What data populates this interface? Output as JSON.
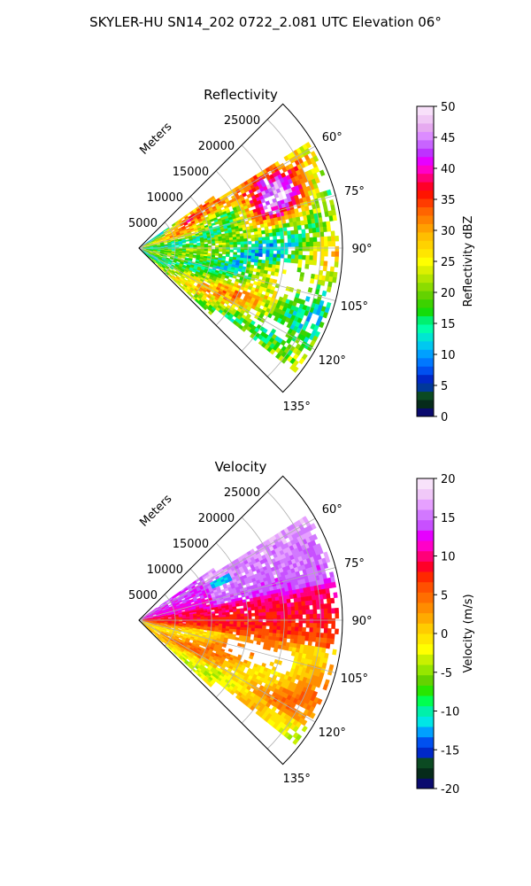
{
  "figure_title": "SKYLER-HU  SN14_202  0722_2.081 UTC Elevation 06°",
  "colors": {
    "reflectivity": [
      "#0a0a6e",
      "#062b1a",
      "#0b4a22",
      "#00389a",
      "#0028c8",
      "#0050f0",
      "#0078ff",
      "#00a0ff",
      "#00c8f0",
      "#00e6d2",
      "#00ffaa",
      "#00f070",
      "#14dc0a",
      "#3cd200",
      "#64d200",
      "#8cdc00",
      "#b4e600",
      "#dcf000",
      "#ffff00",
      "#ffe600",
      "#ffd200",
      "#ffbe00",
      "#ffa000",
      "#ff8200",
      "#ff6400",
      "#ff3c00",
      "#ff1400",
      "#ff0028",
      "#ff0078",
      "#ff00c8",
      "#e600ff",
      "#be32ff",
      "#c864ff",
      "#dc8cff",
      "#e6aaf0",
      "#f0c8f5",
      "#f8e0fa"
    ],
    "velocity": [
      "#0a0a6e",
      "#062b1a",
      "#0b4a22",
      "#0028c8",
      "#0050f0",
      "#00a0ff",
      "#00e6e6",
      "#00f0aa",
      "#00ff50",
      "#28e600",
      "#64d200",
      "#96e600",
      "#c8f000",
      "#ffff00",
      "#ffe600",
      "#ffcc00",
      "#ffaa00",
      "#ff8c00",
      "#ff6e00",
      "#ff5000",
      "#ff2800",
      "#ff0028",
      "#ff0078",
      "#ff00c8",
      "#e600ff",
      "#c850ff",
      "#d278ff",
      "#e6a0ff",
      "#f0c8f8",
      "#f8e2fa"
    ]
  },
  "chart_data": [
    {
      "type": "heatmap",
      "subtype": "radar-ppi-sector",
      "title": "Reflectivity",
      "range_label": "Meters",
      "range_ticks": [
        "5000",
        "10000",
        "15000",
        "20000",
        "25000"
      ],
      "range_tick_values": [
        5000,
        10000,
        15000,
        20000,
        25000
      ],
      "r_max": 28000,
      "azimuth_ticks": [
        "60°",
        "75°",
        "90°",
        "105°",
        "120°",
        "135°"
      ],
      "azimuth_tick_values": [
        60,
        75,
        90,
        105,
        120,
        135
      ],
      "azimuth_range": [
        45,
        135
      ],
      "grid": true,
      "colorbar": {
        "label": "Reflectivity dBZ",
        "min": 0,
        "max": 50,
        "ticks": [
          "0",
          "5",
          "10",
          "15",
          "20",
          "25",
          "30",
          "35",
          "40",
          "45",
          "50"
        ],
        "tick_values": [
          0,
          5,
          10,
          15,
          20,
          25,
          30,
          35,
          40,
          45,
          50
        ]
      },
      "summary": "Echo field mostly 15–30 dBZ with cores of 35–45 dBZ near 65–75° azimuth, 12–22 km range"
    },
    {
      "type": "heatmap",
      "subtype": "radar-ppi-sector",
      "title": "Velocity",
      "range_label": "Meters",
      "range_ticks": [
        "5000",
        "10000",
        "15000",
        "20000",
        "25000"
      ],
      "range_tick_values": [
        5000,
        10000,
        15000,
        20000,
        25000
      ],
      "r_max": 28000,
      "azimuth_ticks": [
        "60°",
        "75°",
        "90°",
        "105°",
        "120°",
        "135°"
      ],
      "azimuth_tick_values": [
        60,
        75,
        90,
        105,
        120,
        135
      ],
      "azimuth_range": [
        45,
        135
      ],
      "grid": true,
      "colorbar": {
        "label": "Velocity (m/s)",
        "min": -20,
        "max": 20,
        "ticks": [
          "-20",
          "-15",
          "-10",
          "-5",
          "0",
          "5",
          "10",
          "15",
          "20"
        ],
        "tick_values": [
          -20,
          -15,
          -10,
          -5,
          0,
          5,
          10,
          15,
          20
        ]
      },
      "summary": "Outbound 10–17 m/s at 60–80° azimuth, ~8–12 m/s near 90°, 0–5 m/s at 100–130°, patch near -12 m/s at ~65°, 12 km"
    }
  ]
}
